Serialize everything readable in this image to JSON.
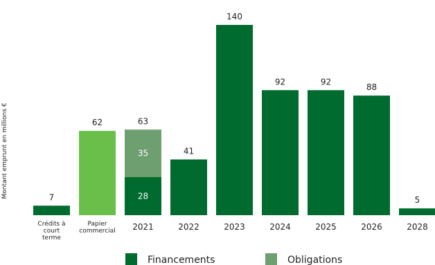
{
  "chart_data": {
    "type": "bar",
    "ylabel": "Montant emprunt en millions €",
    "categories": [
      [
        "Crédits à",
        "court",
        "terme"
      ],
      [
        "Papier",
        "commercial"
      ],
      [
        "2021"
      ],
      [
        "2022"
      ],
      [
        "2023"
      ],
      [
        "2024"
      ],
      [
        "2025"
      ],
      [
        "2026"
      ],
      [
        "2028"
      ]
    ],
    "stacked": [
      {
        "segments": [
          {
            "series": 0,
            "value": 7
          }
        ],
        "total": 7,
        "color_override": null,
        "label_inside": false
      },
      {
        "segments": [
          {
            "series": 0,
            "value": 62
          }
        ],
        "total": 62,
        "color_override": "#6abf4b",
        "label_inside": false
      },
      {
        "segments": [
          {
            "series": 0,
            "value": 28
          },
          {
            "series": 1,
            "value": 35
          }
        ],
        "total": 63,
        "color_override": null,
        "label_inside": true
      },
      {
        "segments": [
          {
            "series": 0,
            "value": 41
          }
        ],
        "total": 41,
        "color_override": null,
        "label_inside": false
      },
      {
        "segments": [
          {
            "series": 0,
            "value": 140
          }
        ],
        "total": 140,
        "color_override": null,
        "label_inside": false
      },
      {
        "segments": [
          {
            "series": 0,
            "value": 92
          }
        ],
        "total": 92,
        "color_override": null,
        "label_inside": false
      },
      {
        "segments": [
          {
            "series": 0,
            "value": 92
          }
        ],
        "total": 92,
        "color_override": null,
        "label_inside": false
      },
      {
        "segments": [
          {
            "series": 0,
            "value": 88
          }
        ],
        "total": 88,
        "color_override": null,
        "label_inside": false
      },
      {
        "segments": [
          {
            "series": 0,
            "value": 5
          }
        ],
        "total": 5,
        "color_override": null,
        "label_inside": false
      }
    ],
    "series": [
      {
        "name": "Financements",
        "color": "#006b2e"
      },
      {
        "name": "Obligations",
        "color": "#6e9f71"
      }
    ],
    "ylim": [
      0,
      140
    ],
    "grid": false,
    "legend_position": "bottom"
  }
}
